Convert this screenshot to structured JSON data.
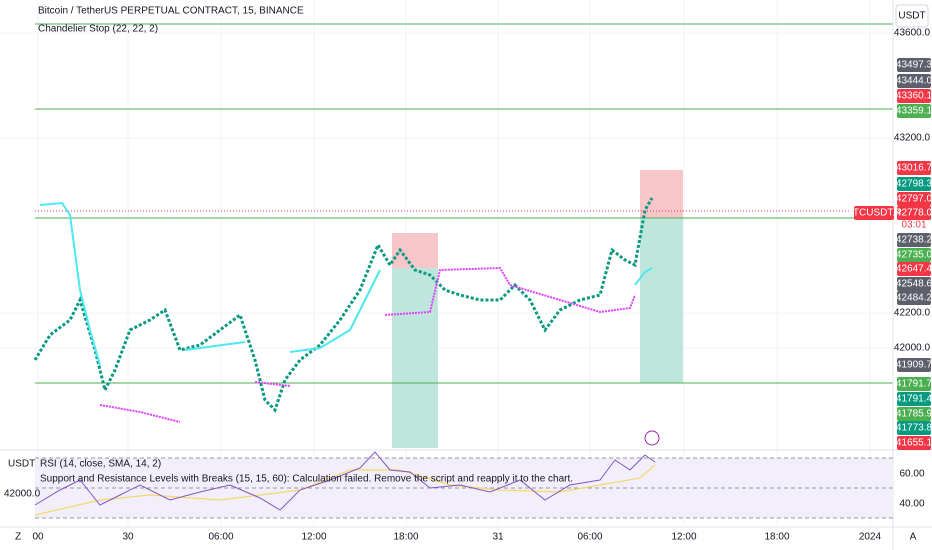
{
  "header": {
    "title": "Bitcoin / TetherUS PERPETUAL CONTRACT, 15, BINANCE",
    "indicator": "Chandelier Stop (22, 22, 2)"
  },
  "price_scale": {
    "currency": "USDT",
    "ticks": [
      "43600.0",
      "43200.0",
      "42200.0",
      "42000.0"
    ],
    "tags": [
      {
        "text": "43497.3",
        "color": "#5d606b"
      },
      {
        "text": "43444.0",
        "color": "#5d606b"
      },
      {
        "text": "43360.1",
        "color": "#f23645"
      },
      {
        "text": "43359.1",
        "color": "#4caf50"
      },
      {
        "text": "43016.7",
        "color": "#f23645"
      },
      {
        "text": "42798.3",
        "color": "#089981"
      },
      {
        "text": "42797.0",
        "color": "#f23645"
      },
      {
        "text": "42778.0",
        "color": "#f23645"
      },
      {
        "text": "42738.2",
        "color": "#5d606b"
      },
      {
        "text": "42735.0",
        "color": "#4caf50"
      },
      {
        "text": "42647.4",
        "color": "#f23645"
      },
      {
        "text": "42548.6",
        "color": "#5d606b"
      },
      {
        "text": "42484.2",
        "color": "#5d606b"
      },
      {
        "text": "41909.7",
        "color": "#5d606b"
      },
      {
        "text": "41791.7",
        "color": "#4caf50"
      },
      {
        "text": "41791.4",
        "color": "#089981"
      },
      {
        "text": "41785.9",
        "color": "#4caf50"
      },
      {
        "text": "41773.8",
        "color": "#089981"
      },
      {
        "text": "41655.1",
        "color": "#f23645"
      }
    ]
  },
  "symbol_tag": {
    "symbol": "BTCUSDT.P",
    "countdown": "03:01"
  },
  "rsi_pane": {
    "title": "RSI (14, close, SMA, 14, 2)",
    "message": "Support and Resistance Levels with Breaks (15, 15, 60): Calculation failed. Remove the script and reapply it to the chart.",
    "ticks": [
      "60.00",
      "40.00"
    ],
    "left_currency": "USDT",
    "left_price": "42000.0"
  },
  "time_axis": [
    "00",
    "30",
    "06:00",
    "12:00",
    "18:00",
    "31",
    "06:00",
    "12:00",
    "18:00",
    "2024"
  ],
  "corner_buttons": {
    "left": "Z",
    "right": "A"
  }
}
